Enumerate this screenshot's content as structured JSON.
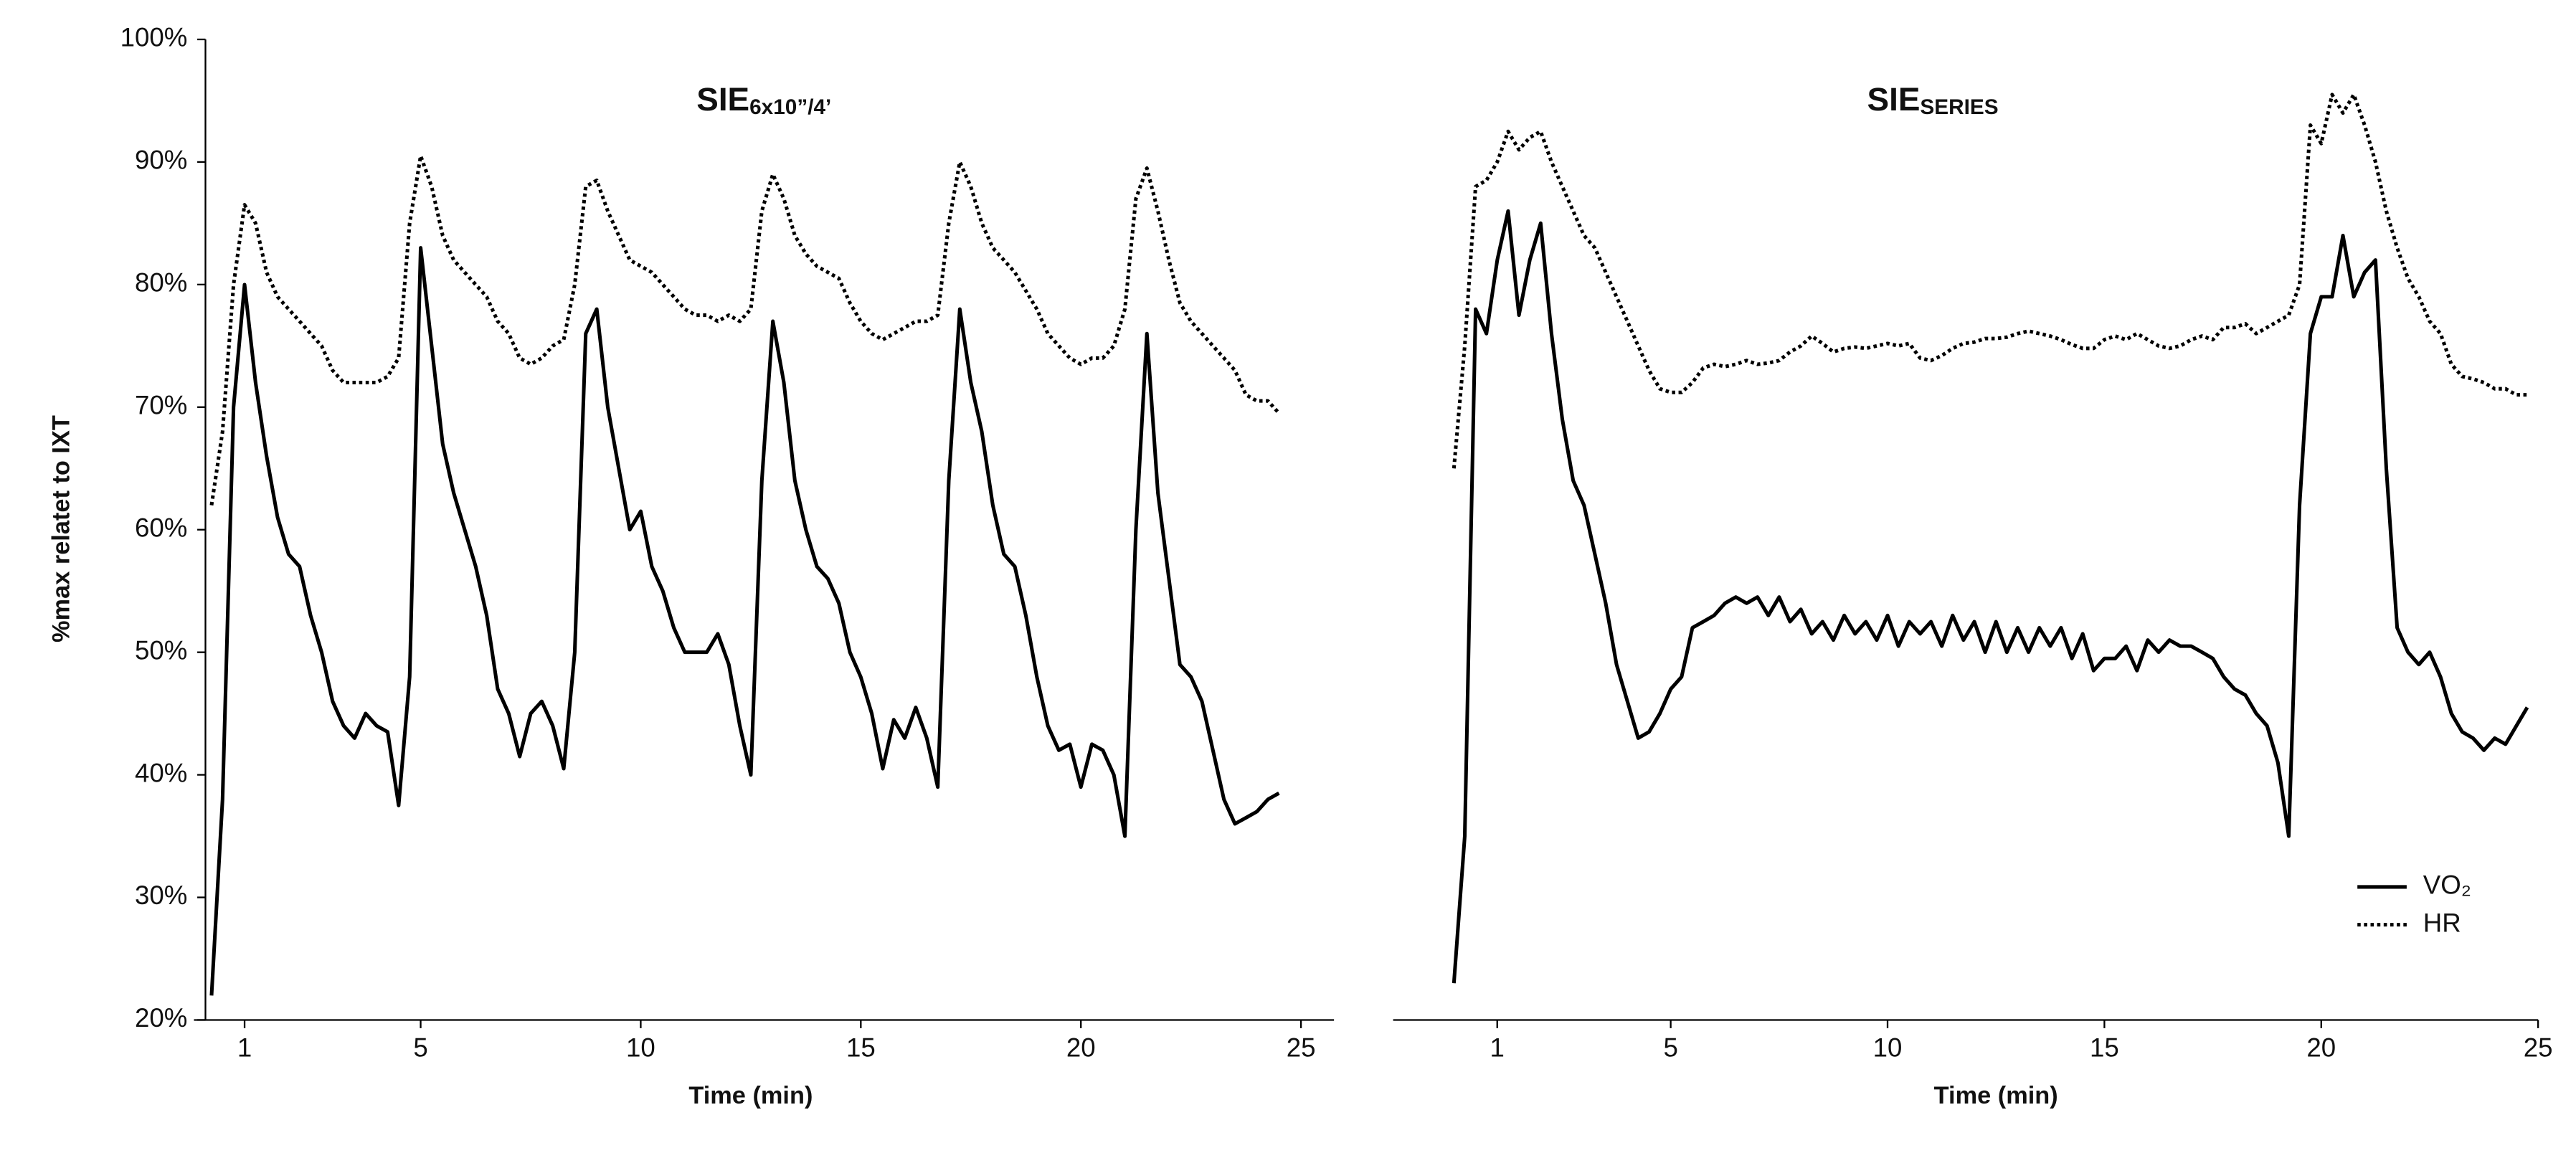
{
  "chart_data": [
    {
      "type": "line",
      "title": "SIE",
      "title_subscript": "6x10”/4’",
      "xlabel": "Time (min)",
      "ylabel": "%max relatet to IXT",
      "xlim": [
        -0.15,
        25.75
      ],
      "ylim": [
        20,
        100
      ],
      "xticks": [
        1,
        5,
        10,
        15,
        20,
        25
      ],
      "yticks": [
        {
          "value": 20,
          "label": "20%"
        },
        {
          "value": 30,
          "label": "30%"
        },
        {
          "value": 40,
          "label": "40%"
        },
        {
          "value": 50,
          "label": "50%"
        },
        {
          "value": 60,
          "label": "60%"
        },
        {
          "value": 70,
          "label": "70%"
        },
        {
          "value": 80,
          "label": "80%"
        },
        {
          "value": 90,
          "label": "90%"
        },
        {
          "value": 100,
          "label": "100%"
        }
      ],
      "x": [
        0.25,
        0.5,
        0.75,
        1,
        1.25,
        1.5,
        1.75,
        2,
        2.25,
        2.5,
        2.75,
        3,
        3.25,
        3.5,
        3.75,
        4,
        4.25,
        4.5,
        4.75,
        5,
        5.25,
        5.5,
        5.75,
        6,
        6.25,
        6.5,
        6.75,
        7,
        7.25,
        7.5,
        7.75,
        8,
        8.25,
        8.5,
        8.75,
        9,
        9.25,
        9.5,
        9.75,
        10,
        10.25,
        10.5,
        10.75,
        11,
        11.25,
        11.5,
        11.75,
        12,
        12.25,
        12.5,
        12.75,
        13,
        13.25,
        13.5,
        13.75,
        14,
        14.25,
        14.5,
        14.75,
        15,
        15.25,
        15.5,
        15.75,
        16,
        16.25,
        16.5,
        16.75,
        17,
        17.25,
        17.5,
        17.75,
        18,
        18.25,
        18.5,
        18.75,
        19,
        19.25,
        19.5,
        19.75,
        20,
        20.25,
        20.5,
        20.75,
        21,
        21.25,
        21.5,
        21.75,
        22,
        22.25,
        22.5,
        22.75,
        23,
        23.25,
        23.5,
        23.75,
        24,
        24.25,
        24.5
      ],
      "series": [
        {
          "name": "VO₂",
          "color": "#000000",
          "linestyle": "solid",
          "values": [
            22,
            38,
            70,
            80,
            72,
            66,
            61,
            58,
            57,
            53,
            50,
            46,
            44,
            43,
            45,
            44,
            43.5,
            37.5,
            48,
            83,
            75,
            67,
            63,
            60,
            57,
            53,
            47,
            45,
            41.5,
            45,
            46,
            44,
            40.5,
            50,
            76,
            78,
            70,
            65,
            60,
            61.5,
            57,
            55,
            52,
            50,
            50,
            50,
            51.5,
            49,
            44,
            40,
            64,
            77,
            72,
            64,
            60,
            57,
            56,
            54,
            50,
            48,
            45,
            40.5,
            44.5,
            43,
            45.5,
            43,
            39,
            64,
            78,
            72,
            68,
            62,
            58,
            57,
            53,
            48,
            44,
            42,
            42.5,
            39,
            42.5,
            42,
            40,
            35,
            60,
            76,
            63,
            56,
            49,
            48,
            46,
            42,
            38,
            36,
            36.5,
            37,
            38,
            38.5
          ]
        },
        {
          "name": "HR",
          "color": "#000000",
          "linestyle": "dotted",
          "values": [
            62,
            68,
            80,
            86.5,
            85,
            81,
            79,
            78,
            77,
            76,
            75,
            73,
            72,
            72,
            72,
            72,
            72.5,
            74,
            85,
            90.5,
            88,
            84,
            82,
            81,
            80,
            79,
            77,
            76,
            74,
            73.5,
            74,
            75,
            75.5,
            80,
            88,
            88.5,
            86,
            84,
            82,
            81.5,
            81,
            80,
            79,
            78,
            77.5,
            77.5,
            77,
            77.5,
            77,
            78,
            86,
            89,
            87,
            84,
            82.5,
            81.5,
            81,
            80.5,
            78.5,
            77,
            76,
            75.5,
            76,
            76.5,
            77,
            77,
            77.5,
            85,
            90,
            88,
            85,
            83,
            82,
            81,
            79.5,
            78,
            76,
            75,
            74,
            73.5,
            74,
            74,
            75,
            78,
            87,
            89.5,
            86,
            82,
            78.5,
            77,
            76,
            75,
            74,
            73,
            71,
            70.5,
            70.5,
            69.5
          ]
        }
      ]
    },
    {
      "type": "line",
      "title": "SIE",
      "title_subscript": "SERIES",
      "xlabel": "Time (min)",
      "xlim": [
        -1.4,
        25
      ],
      "ylim": [
        20,
        100
      ],
      "xticks": [
        1,
        5,
        10,
        15,
        20,
        25
      ],
      "legend": "lower right",
      "x": [
        0,
        0.25,
        0.5,
        0.75,
        1,
        1.25,
        1.5,
        1.75,
        2,
        2.25,
        2.5,
        2.75,
        3,
        3.25,
        3.5,
        3.75,
        4,
        4.25,
        4.5,
        4.75,
        5,
        5.25,
        5.5,
        5.75,
        6,
        6.25,
        6.5,
        6.75,
        7,
        7.25,
        7.5,
        7.75,
        8,
        8.25,
        8.5,
        8.75,
        9,
        9.25,
        9.5,
        9.75,
        10,
        10.25,
        10.5,
        10.75,
        11,
        11.25,
        11.5,
        11.75,
        12,
        12.25,
        12.5,
        12.75,
        13,
        13.25,
        13.5,
        13.75,
        14,
        14.25,
        14.5,
        14.75,
        15,
        15.25,
        15.5,
        15.75,
        16,
        16.25,
        16.5,
        16.75,
        17,
        17.25,
        17.5,
        17.75,
        18,
        18.25,
        18.5,
        18.75,
        19,
        19.25,
        19.5,
        19.75,
        20,
        20.25,
        20.5,
        20.75,
        21,
        21.25,
        21.5,
        21.75,
        22,
        22.25,
        22.5,
        22.75,
        23,
        23.25,
        23.5,
        23.75,
        24,
        24.25,
        24.5,
        24.75
      ],
      "series": [
        {
          "name": "VO₂",
          "color": "#000000",
          "linestyle": "solid",
          "values": [
            23,
            35,
            78,
            76,
            82,
            86,
            77.5,
            82,
            85,
            76,
            69,
            64,
            62,
            58,
            54,
            49,
            46,
            43,
            43.5,
            45,
            47,
            48,
            52,
            52.5,
            53,
            54,
            54.5,
            54,
            54.5,
            53,
            54.5,
            52.5,
            53.5,
            51.5,
            52.5,
            51,
            53,
            51.5,
            52.5,
            51,
            53,
            50.5,
            52.5,
            51.5,
            52.5,
            50.5,
            53,
            51,
            52.5,
            50,
            52.5,
            50,
            52,
            50,
            52,
            50.5,
            52,
            49.5,
            51.5,
            48.5,
            49.5,
            49.5,
            50.5,
            48.5,
            51,
            50,
            51,
            50.5,
            50.5,
            50,
            49.5,
            48,
            47,
            46.5,
            45,
            44,
            41,
            35,
            62,
            76,
            79,
            79,
            84,
            79,
            81,
            82,
            65,
            52,
            50,
            49,
            50,
            48,
            45,
            43.5,
            43,
            42,
            43,
            42.5,
            44,
            45.5
          ]
        },
        {
          "name": "HR",
          "color": "#000000",
          "linestyle": "dotted",
          "values": [
            65,
            75,
            88,
            88.5,
            90,
            92.5,
            91,
            92,
            92.5,
            90,
            88,
            86,
            84,
            83,
            81,
            79,
            77,
            75,
            73,
            71.5,
            71.2,
            71.2,
            72,
            73.2,
            73.5,
            73.3,
            73.5,
            73.8,
            73.5,
            73.6,
            73.8,
            74.5,
            75,
            75.8,
            75.2,
            74.5,
            74.8,
            74.9,
            74.8,
            75,
            75.2,
            75,
            75.2,
            74,
            73.8,
            74.2,
            74.8,
            75.2,
            75.3,
            75.6,
            75.6,
            75.7,
            76,
            76.2,
            76,
            75.8,
            75.5,
            75.1,
            74.8,
            74.8,
            75.5,
            75.8,
            75.5,
            76,
            75.5,
            75,
            74.8,
            75,
            75.5,
            75.8,
            75.5,
            76.5,
            76.5,
            76.8,
            76,
            76.5,
            77,
            77.5,
            80,
            93,
            91.5,
            95.5,
            94,
            95.5,
            93,
            90,
            86,
            83,
            80.5,
            79,
            77,
            76,
            73.5,
            72.5,
            72.3,
            72,
            71.5,
            71.5,
            71,
            71
          ]
        }
      ]
    }
  ]
}
